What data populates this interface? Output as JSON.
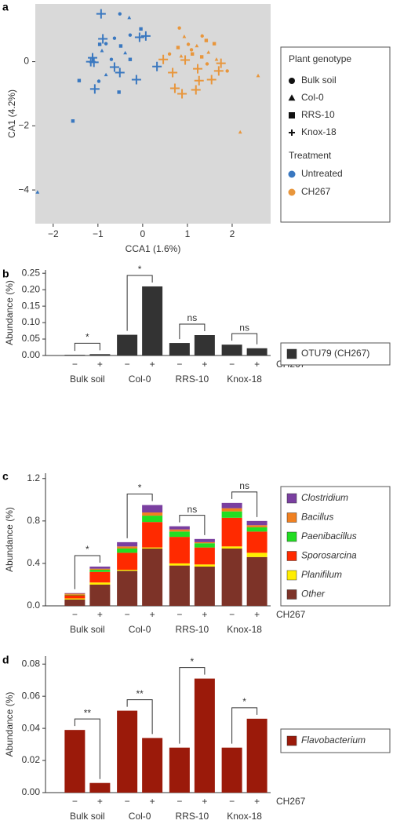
{
  "chart_data": [
    {
      "type": "scatter",
      "panel_label": "a",
      "xlabel": "CCA1 (1.6%)",
      "ylabel": "CA1 (4.2%)",
      "xlim": [
        -2.4,
        2.86
      ],
      "ylim": [
        -5.05,
        1.8
      ],
      "xticks": [
        {
          "value": -2,
          "label": "−2"
        },
        {
          "value": -1,
          "label": "−1"
        },
        0,
        1,
        2
      ],
      "yticks": [
        {
          "value": -4,
          "label": "−4"
        },
        {
          "value": -2,
          "label": "−2"
        },
        0
      ],
      "background": "#d9d9d9",
      "legend": {
        "marker_title": "Plant genotype",
        "markers": [
          {
            "name": "Bulk soil",
            "marker": "circle"
          },
          {
            "name": "Col-0",
            "marker": "triangle"
          },
          {
            "name": "RRS-10",
            "marker": "square"
          },
          {
            "name": "Knox-18",
            "marker": "plus"
          }
        ],
        "color_title": "Treatment",
        "colors": [
          {
            "name": "Untreated",
            "color": "#3a78c0"
          },
          {
            "name": "CH267",
            "color": "#e8963c"
          }
        ]
      },
      "series": [
        {
          "marker": "plus",
          "color": "#3a78c0",
          "x": [
            -0.93,
            -0.89,
            -1.12,
            -1.16,
            -1.09,
            -0.63,
            -1.07,
            -0.14,
            0.07,
            0.32,
            -0.07,
            -0.51
          ],
          "values": [
            1.49,
            0.71,
            0.12,
            0,
            -0.02,
            -0.17,
            -0.85,
            -0.56,
            0.8,
            -0.15,
            0.76,
            -0.34
          ]
        },
        {
          "marker": "circle",
          "color": "#3a78c0",
          "x": [
            -0.51,
            -0.28,
            -0.63,
            -0.82,
            -0.7,
            -0.98
          ],
          "values": [
            1.49,
            0.83,
            0.73,
            0.56,
            0.07,
            -0.61
          ]
        },
        {
          "marker": "triangle",
          "color": "#3a78c0",
          "x": [
            -0.3,
            -0.91,
            -0.39,
            -2.35,
            -0.82
          ],
          "values": [
            1.37,
            0.34,
            0.27,
            -4.07,
            -0.41
          ]
        },
        {
          "marker": "square",
          "color": "#3a78c0",
          "x": [
            -0.49,
            -0.04,
            -0.96,
            -0.28,
            -1.42,
            -1.56,
            -0.53
          ],
          "values": [
            0.49,
            1.02,
            0.54,
            0.07,
            -0.59,
            -1.85,
            -0.95
          ]
        },
        {
          "marker": "plus",
          "color": "#e8963c",
          "x": [
            0.46,
            0.67,
            0.95,
            1.23,
            1.26,
            1.19,
            1.54,
            1.7,
            1.75,
            0.72,
            0.88
          ],
          "values": [
            0.07,
            -0.34,
            0.05,
            -0.22,
            -0.59,
            -0.88,
            -0.56,
            -0.29,
            -0.05,
            -0.83,
            -1.0
          ]
        },
        {
          "marker": "circle",
          "color": "#e8963c",
          "x": [
            0.82,
            1.09,
            1.33,
            1.02,
            0.6,
            1.44,
            1.89
          ],
          "values": [
            1.05,
            0.37,
            0.8,
            0.54,
            0.24,
            -0.07,
            -0.29
          ]
        },
        {
          "marker": "triangle",
          "color": "#e8963c",
          "x": [
            0.93,
            1.21,
            1.47,
            0.86,
            1.65,
            2.58,
            2.18
          ],
          "values": [
            0.78,
            0.49,
            0.29,
            0.17,
            0.07,
            -0.44,
            -2.2
          ]
        },
        {
          "marker": "square",
          "color": "#e8963c",
          "x": [
            1.42,
            1.32,
            0.79,
            1.11,
            1.6
          ],
          "values": [
            0.66,
            0.15,
            0.44,
            0.24,
            0.56
          ]
        }
      ]
    },
    {
      "type": "bar",
      "panel_label": "b",
      "ylabel": "Abundance (%)",
      "categories": [
        "Bulk soil",
        "Col-0",
        "RRS-10",
        "Knox-18"
      ],
      "treatments": [
        "−",
        "+"
      ],
      "treatment_label": "CH267",
      "ylim": [
        0,
        0.26
      ],
      "yticks": [
        {
          "value": 0,
          "label": "0.00"
        },
        {
          "value": 0.05,
          "label": "0.05"
        },
        {
          "value": 0.1,
          "label": "0.10"
        },
        {
          "value": 0.15,
          "label": "0.15"
        },
        {
          "value": 0.2,
          "label": "0.20"
        },
        {
          "value": 0.25,
          "label": "0.25"
        }
      ],
      "series": [
        {
          "name": "OTU79 (CH267)",
          "color": "#333333",
          "values": [
            [
              0.002,
              0.004
            ],
            [
              0.063,
              0.21
            ],
            [
              0.038,
              0.062
            ],
            [
              0.033,
              0.022
            ]
          ]
        }
      ],
      "significance": [
        "*",
        "*",
        "ns",
        "ns"
      ],
      "legend_italic": false
    },
    {
      "type": "stacked_bar",
      "panel_label": "c",
      "ylabel": "Abundance (%)",
      "categories": [
        "Bulk soil",
        "Col-0",
        "RRS-10",
        "Knox-18"
      ],
      "treatments": [
        "−",
        "+"
      ],
      "treatment_label": "CH267",
      "ylim": [
        0,
        1.25
      ],
      "yticks": [
        {
          "value": 0,
          "label": "0.0"
        },
        0.4,
        0.8,
        1.2
      ],
      "series": [
        {
          "name": "Other",
          "color": "#7d3328",
          "values": [
            [
              0.06,
              0.2
            ],
            [
              0.33,
              0.54
            ],
            [
              0.38,
              0.37
            ],
            [
              0.54,
              0.46
            ]
          ]
        },
        {
          "name": "Planifilum",
          "color": "#ffee00",
          "values": [
            [
              0.01,
              0.02
            ],
            [
              0.01,
              0.01
            ],
            [
              0.02,
              0.02
            ],
            [
              0.02,
              0.04
            ]
          ]
        },
        {
          "name": "Sporosarcina",
          "color": "#ff2a00",
          "values": [
            [
              0.03,
              0.1
            ],
            [
              0.16,
              0.24
            ],
            [
              0.25,
              0.16
            ],
            [
              0.27,
              0.2
            ]
          ]
        },
        {
          "name": "Paenibacillus",
          "color": "#22dd22",
          "values": [
            [
              0.005,
              0.02
            ],
            [
              0.04,
              0.06
            ],
            [
              0.05,
              0.04
            ],
            [
              0.06,
              0.04
            ]
          ]
        },
        {
          "name": "Bacillus",
          "color": "#f08020",
          "values": [
            [
              0.01,
              0.01
            ],
            [
              0.02,
              0.03
            ],
            [
              0.02,
              0.01
            ],
            [
              0.03,
              0.02
            ]
          ]
        },
        {
          "name": "Clostridium",
          "color": "#7a3fa0",
          "values": [
            [
              0.005,
              0.02
            ],
            [
              0.04,
              0.07
            ],
            [
              0.03,
              0.03
            ],
            [
              0.05,
              0.04
            ]
          ]
        }
      ],
      "significance": [
        "*",
        "*",
        "ns",
        "ns"
      ],
      "legend_italic": true
    },
    {
      "type": "bar",
      "panel_label": "d",
      "ylabel": "Abundance (%)",
      "categories": [
        "Bulk soil",
        "Col-0",
        "RRS-10",
        "Knox-18"
      ],
      "treatments": [
        "−",
        "+"
      ],
      "treatment_label": "CH267",
      "ylim": [
        0,
        0.085
      ],
      "yticks": [
        {
          "value": 0,
          "label": "0.00"
        },
        {
          "value": 0.02,
          "label": "0.02"
        },
        {
          "value": 0.04,
          "label": "0.04"
        },
        {
          "value": 0.06,
          "label": "0.06"
        },
        {
          "value": 0.08,
          "label": "0.08"
        }
      ],
      "series": [
        {
          "name": "Flavobacterium",
          "color": "#9b1a0a",
          "values": [
            [
              0.039,
              0.006
            ],
            [
              0.051,
              0.034
            ],
            [
              0.028,
              0.071
            ],
            [
              0.028,
              0.046
            ]
          ]
        }
      ],
      "significance": [
        "**",
        "**",
        "*",
        "*"
      ],
      "legend_italic": true
    }
  ]
}
